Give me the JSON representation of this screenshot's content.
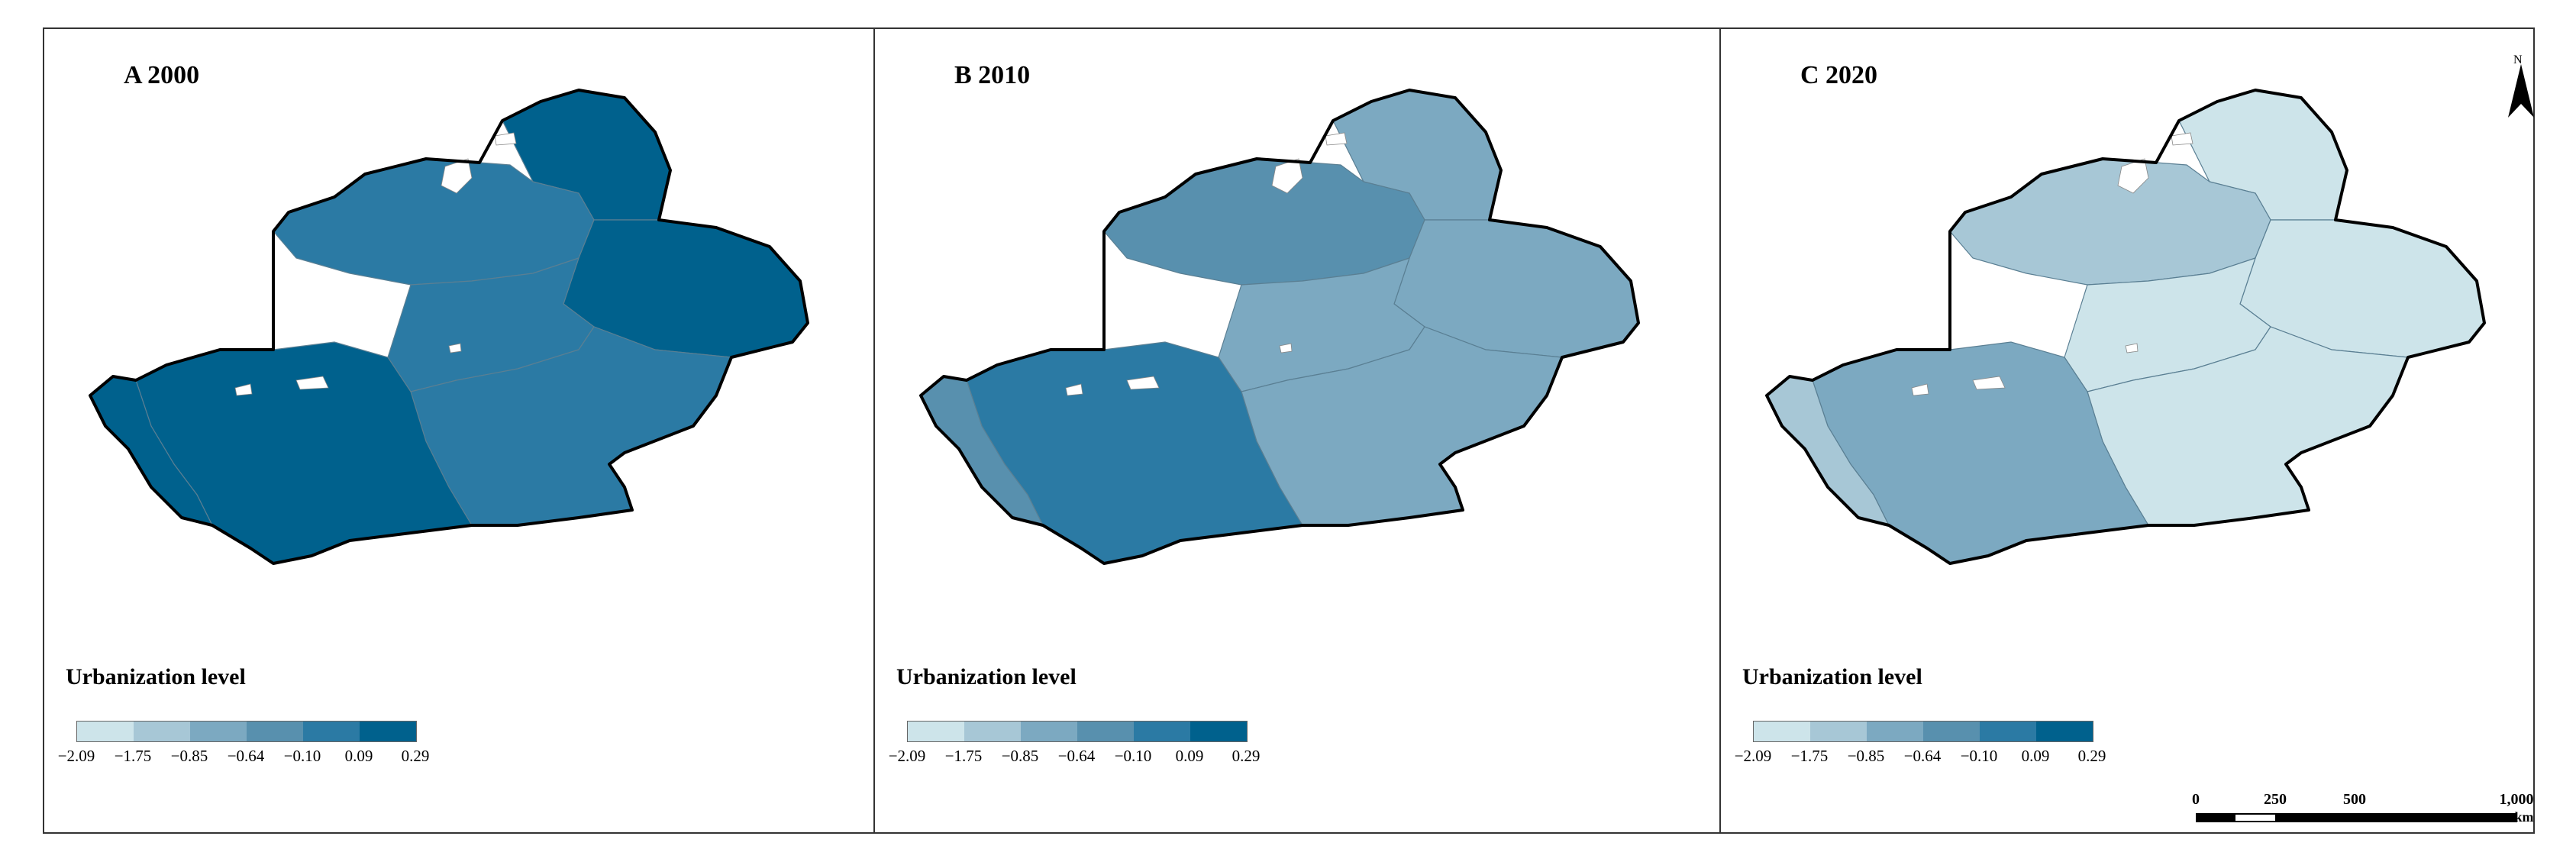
{
  "panels": [
    {
      "title": "A 2000",
      "region_colors": {
        "zone_north": "#00618d",
        "zone_northwest": "#2b7aa4",
        "zone_central": "#2b7aa4",
        "zone_east": "#00618d",
        "zone_southwest": "#00618d",
        "zone_south_outer": "#00618d",
        "zone_southeast": "#2b7aa4"
      }
    },
    {
      "title": "B 2010",
      "region_colors": {
        "zone_north": "#7ca9c1",
        "zone_northwest": "#5890ae",
        "zone_central": "#7ca9c1",
        "zone_east": "#7ca9c1",
        "zone_southwest": "#2b7aa4",
        "zone_south_outer": "#5890ae",
        "zone_southeast": "#7ca9c1"
      }
    },
    {
      "title": "C 2020",
      "region_colors": {
        "zone_north": "#cde4ea",
        "zone_northwest": "#a7c7d6",
        "zone_central": "#cde4ea",
        "zone_east": "#cde4ea",
        "zone_southwest": "#7ca9c1",
        "zone_south_outer": "#a7c7d6",
        "zone_southeast": "#cde4ea"
      }
    }
  ],
  "legend": {
    "title": "Urbanization level",
    "colors": [
      "#cde4ea",
      "#a7c7d6",
      "#7ca9c1",
      "#5890ae",
      "#2b7aa4",
      "#00618d"
    ],
    "ticks": [
      "−2.09",
      "−1.75",
      "−0.85",
      "−0.64",
      "−0.10",
      "0.09",
      "0.29"
    ]
  },
  "north_arrow": {
    "label": "N"
  },
  "scale_bar": {
    "labels": [
      "0",
      "250",
      "500",
      "1,000"
    ],
    "unit": "km"
  }
}
